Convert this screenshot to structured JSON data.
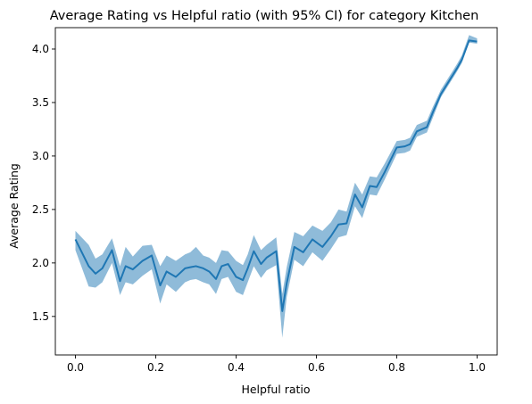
{
  "chart_data": {
    "type": "line",
    "title": "Average Rating vs Helpful ratio (with 95% CI) for category Kitchen",
    "xlabel": "Helpful ratio",
    "ylabel": "Average Rating",
    "xlim": [
      -0.05,
      1.05
    ],
    "ylim": [
      1.14,
      4.2
    ],
    "xticks": [
      "0.0",
      "0.2",
      "0.4",
      "0.6",
      "0.8",
      "1.0"
    ],
    "yticks": [
      "1.5",
      "2.0",
      "2.5",
      "3.0",
      "3.5",
      "4.0"
    ],
    "grid": false,
    "legend": "none",
    "line_color": "#1f77b4",
    "band_color": "#1f77b4",
    "series": [
      {
        "x": [
          0.0,
          0.033,
          0.05,
          0.067,
          0.091,
          0.111,
          0.125,
          0.143,
          0.167,
          0.19,
          0.211,
          0.227,
          0.25,
          0.273,
          0.286,
          0.3,
          0.318,
          0.333,
          0.35,
          0.364,
          0.38,
          0.4,
          0.417,
          0.429,
          0.444,
          0.462,
          0.476,
          0.5,
          0.515,
          0.526,
          0.545,
          0.567,
          0.59,
          0.615,
          0.636,
          0.655,
          0.675,
          0.696,
          0.714,
          0.733,
          0.75,
          0.77,
          0.8,
          0.82,
          0.833,
          0.85,
          0.875,
          0.89,
          0.91,
          0.93,
          0.95,
          0.962,
          0.98,
          1.0
        ],
        "y": [
          2.22,
          1.97,
          1.9,
          1.95,
          2.12,
          1.83,
          1.97,
          1.94,
          2.02,
          2.07,
          1.79,
          1.92,
          1.87,
          1.95,
          1.96,
          1.97,
          1.95,
          1.92,
          1.85,
          1.97,
          1.99,
          1.87,
          1.84,
          1.95,
          2.11,
          1.99,
          2.05,
          2.11,
          1.55,
          1.81,
          2.15,
          2.1,
          2.22,
          2.15,
          2.25,
          2.36,
          2.37,
          2.64,
          2.52,
          2.72,
          2.71,
          2.85,
          3.08,
          3.09,
          3.11,
          3.23,
          3.27,
          3.41,
          3.58,
          3.7,
          3.82,
          3.9,
          4.08,
          4.07
        ],
        "ci_low": [
          2.12,
          1.78,
          1.77,
          1.82,
          2.0,
          1.7,
          1.82,
          1.8,
          1.88,
          1.94,
          1.62,
          1.8,
          1.73,
          1.82,
          1.84,
          1.85,
          1.82,
          1.8,
          1.71,
          1.85,
          1.87,
          1.73,
          1.7,
          1.82,
          1.97,
          1.86,
          1.93,
          1.98,
          1.3,
          1.68,
          2.03,
          1.97,
          2.1,
          2.02,
          2.13,
          2.24,
          2.26,
          2.53,
          2.42,
          2.64,
          2.63,
          2.78,
          3.02,
          3.03,
          3.05,
          3.18,
          3.22,
          3.36,
          3.55,
          3.67,
          3.79,
          3.87,
          4.06,
          4.05
        ],
        "ci_high": [
          2.3,
          2.17,
          2.04,
          2.08,
          2.23,
          1.97,
          2.15,
          2.06,
          2.16,
          2.17,
          1.97,
          2.07,
          2.02,
          2.08,
          2.1,
          2.15,
          2.07,
          2.05,
          2.0,
          2.12,
          2.11,
          2.02,
          1.98,
          2.08,
          2.26,
          2.12,
          2.17,
          2.24,
          1.71,
          1.96,
          2.29,
          2.25,
          2.35,
          2.3,
          2.38,
          2.5,
          2.48,
          2.75,
          2.64,
          2.81,
          2.8,
          2.93,
          3.14,
          3.15,
          3.17,
          3.29,
          3.33,
          3.46,
          3.62,
          3.74,
          3.86,
          3.94,
          4.13,
          4.1
        ]
      }
    ]
  }
}
